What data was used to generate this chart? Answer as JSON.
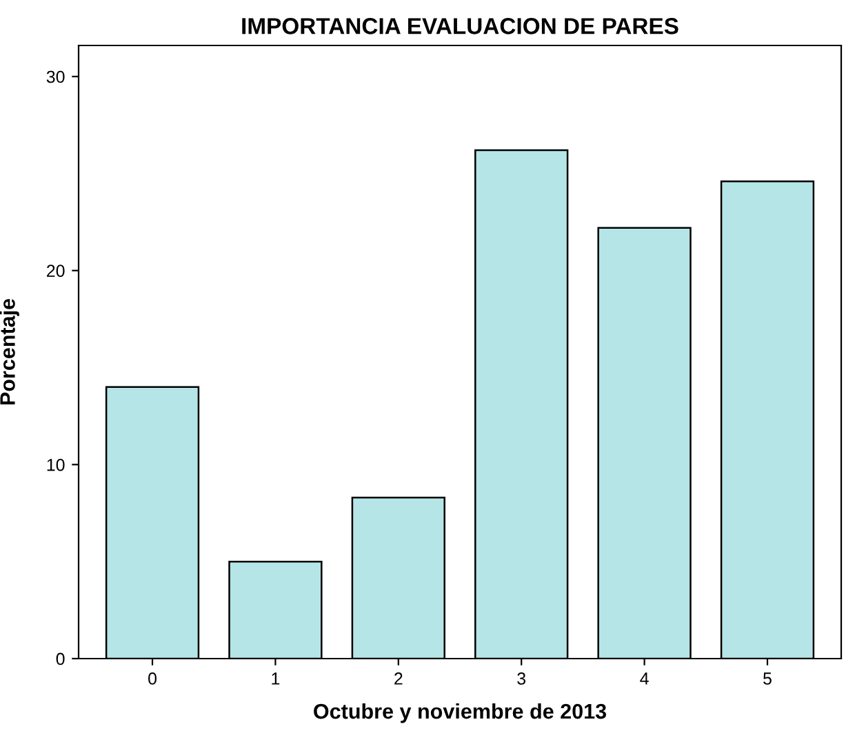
{
  "chart_data": {
    "type": "bar",
    "title": "IMPORTANCIA EVALUACION DE PARES",
    "xlabel": "Octubre y noviembre de 2013",
    "ylabel": "Porcentaje",
    "categories": [
      "0",
      "1",
      "2",
      "3",
      "4",
      "5"
    ],
    "values": [
      14.0,
      5.0,
      8.3,
      26.2,
      22.2,
      24.6
    ],
    "color": "#b5e5e7",
    "ylim": [
      0,
      31.6
    ],
    "yticks": [
      0,
      10,
      20,
      30
    ],
    "grid": false
  }
}
